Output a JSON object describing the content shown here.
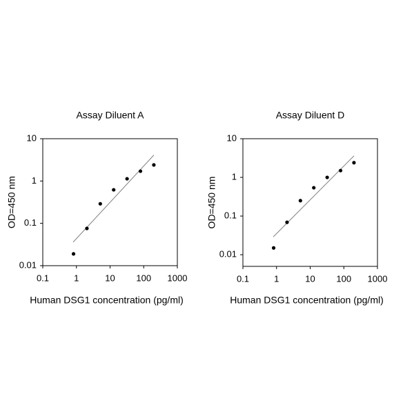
{
  "chart_data": [
    {
      "type": "scatter",
      "title": "Assay Diluent A",
      "x_label": "Human DSG1 concentration (pg/ml)",
      "y_label": "OD=450 nm",
      "log_x": true,
      "log_y": true,
      "xlim": [
        0.1,
        1000
      ],
      "ylim": [
        0.01,
        10
      ],
      "xticks": [
        0.1,
        1,
        10,
        100,
        1000
      ],
      "yticks": [
        0.01,
        0.1,
        1,
        10
      ],
      "series": [
        {
          "color": "#000000",
          "x": [
            0.82,
            2.05,
            5.12,
            12.8,
            32,
            80,
            200
          ],
          "values": [
            0.019,
            0.076,
            0.29,
            0.62,
            1.13,
            1.71,
            2.4
          ]
        }
      ],
      "trendline": {
        "color": "#808080",
        "x": [
          0.8,
          200
        ],
        "values": [
          0.036,
          4.1
        ]
      }
    },
    {
      "type": "scatter",
      "title": "Assay Diluent D",
      "x_label": "Human DSG1 concentration (pg/ml)",
      "y_label": "OD=450 nm",
      "log_x": true,
      "log_y": true,
      "xlim": [
        0.1,
        1000
      ],
      "ylim": [
        0.005,
        10
      ],
      "xticks": [
        0.1,
        1,
        10,
        100,
        1000
      ],
      "yticks": [
        0.01,
        0.1,
        1,
        10
      ],
      "series": [
        {
          "color": "#000000",
          "x": [
            0.82,
            2.05,
            5.12,
            12.8,
            32,
            80,
            200
          ],
          "values": [
            0.015,
            0.069,
            0.25,
            0.54,
            1.0,
            1.5,
            2.4
          ]
        }
      ],
      "trendline": {
        "color": "#808080",
        "x": [
          0.8,
          200
        ],
        "values": [
          0.029,
          3.6
        ]
      }
    }
  ]
}
